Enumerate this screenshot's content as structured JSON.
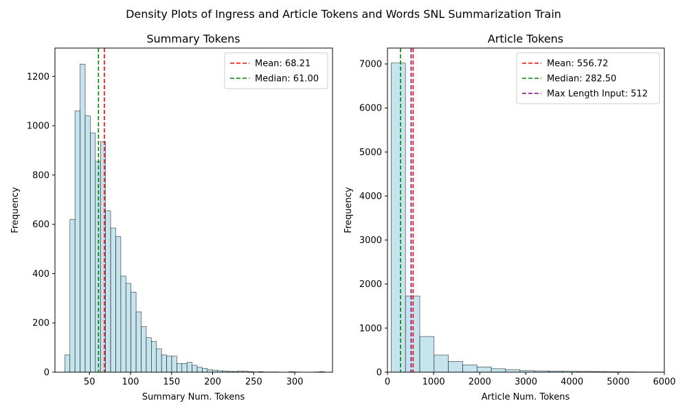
{
  "figure": {
    "suptitle": "Density Plots of Ingress and Article Tokens and Words SNL Summarization Train"
  },
  "chart_data": [
    {
      "type": "bar",
      "title": "Summary Tokens",
      "xlabel": "Summary Num. Tokens",
      "ylabel": "Frequency",
      "xlim": [
        8,
        346
      ],
      "ylim": [
        0,
        1315
      ],
      "xticks": [
        50,
        100,
        150,
        200,
        250,
        300
      ],
      "yticks": [
        0,
        200,
        400,
        600,
        800,
        1000,
        1200
      ],
      "grid": false,
      "legend_placement": "upper right",
      "bar_color": "#add8e6",
      "bar_alpha": 0.7,
      "bin_width": 6.2,
      "bin_start": 20,
      "values": [
        70,
        620,
        1060,
        1250,
        1040,
        970,
        855,
        935,
        655,
        585,
        550,
        390,
        360,
        325,
        245,
        185,
        140,
        125,
        95,
        70,
        65,
        65,
        35,
        35,
        40,
        28,
        20,
        15,
        10,
        8,
        6,
        5,
        3,
        3,
        5,
        4,
        2,
        1,
        2,
        1,
        1,
        1,
        0,
        0,
        2,
        1,
        0,
        0,
        0,
        1,
        2
      ],
      "reference_lines": [
        {
          "label": "Mean: 68.21",
          "x": 68.21,
          "color": "#ff0000"
        },
        {
          "label": "Median: 61.00",
          "x": 61.0,
          "color": "#008000"
        }
      ]
    },
    {
      "type": "bar",
      "title": "Article Tokens",
      "xlabel": "Article Num. Tokens",
      "ylabel": "Frequency",
      "xlim": [
        0,
        6000
      ],
      "ylim": [
        0,
        7360
      ],
      "xticks": [
        0,
        1000,
        2000,
        3000,
        4000,
        5000,
        6000
      ],
      "yticks": [
        0,
        1000,
        2000,
        3000,
        4000,
        5000,
        6000,
        7000
      ],
      "grid": false,
      "legend_placement": "upper right",
      "bar_color": "#add8e6",
      "bar_alpha": 0.7,
      "bin_width": 310,
      "bin_start": 80,
      "values": [
        7020,
        1730,
        810,
        390,
        245,
        165,
        120,
        80,
        55,
        35,
        30,
        25,
        20,
        18,
        15,
        10,
        8,
        6,
        5,
        4
      ],
      "reference_lines": [
        {
          "label": "Mean: 556.72",
          "x": 556.72,
          "color": "#ff0000"
        },
        {
          "label": "Median: 282.50",
          "x": 282.5,
          "color": "#008000"
        },
        {
          "label": "Max Length Input: 512",
          "x": 512,
          "color": "#800080"
        }
      ]
    }
  ]
}
